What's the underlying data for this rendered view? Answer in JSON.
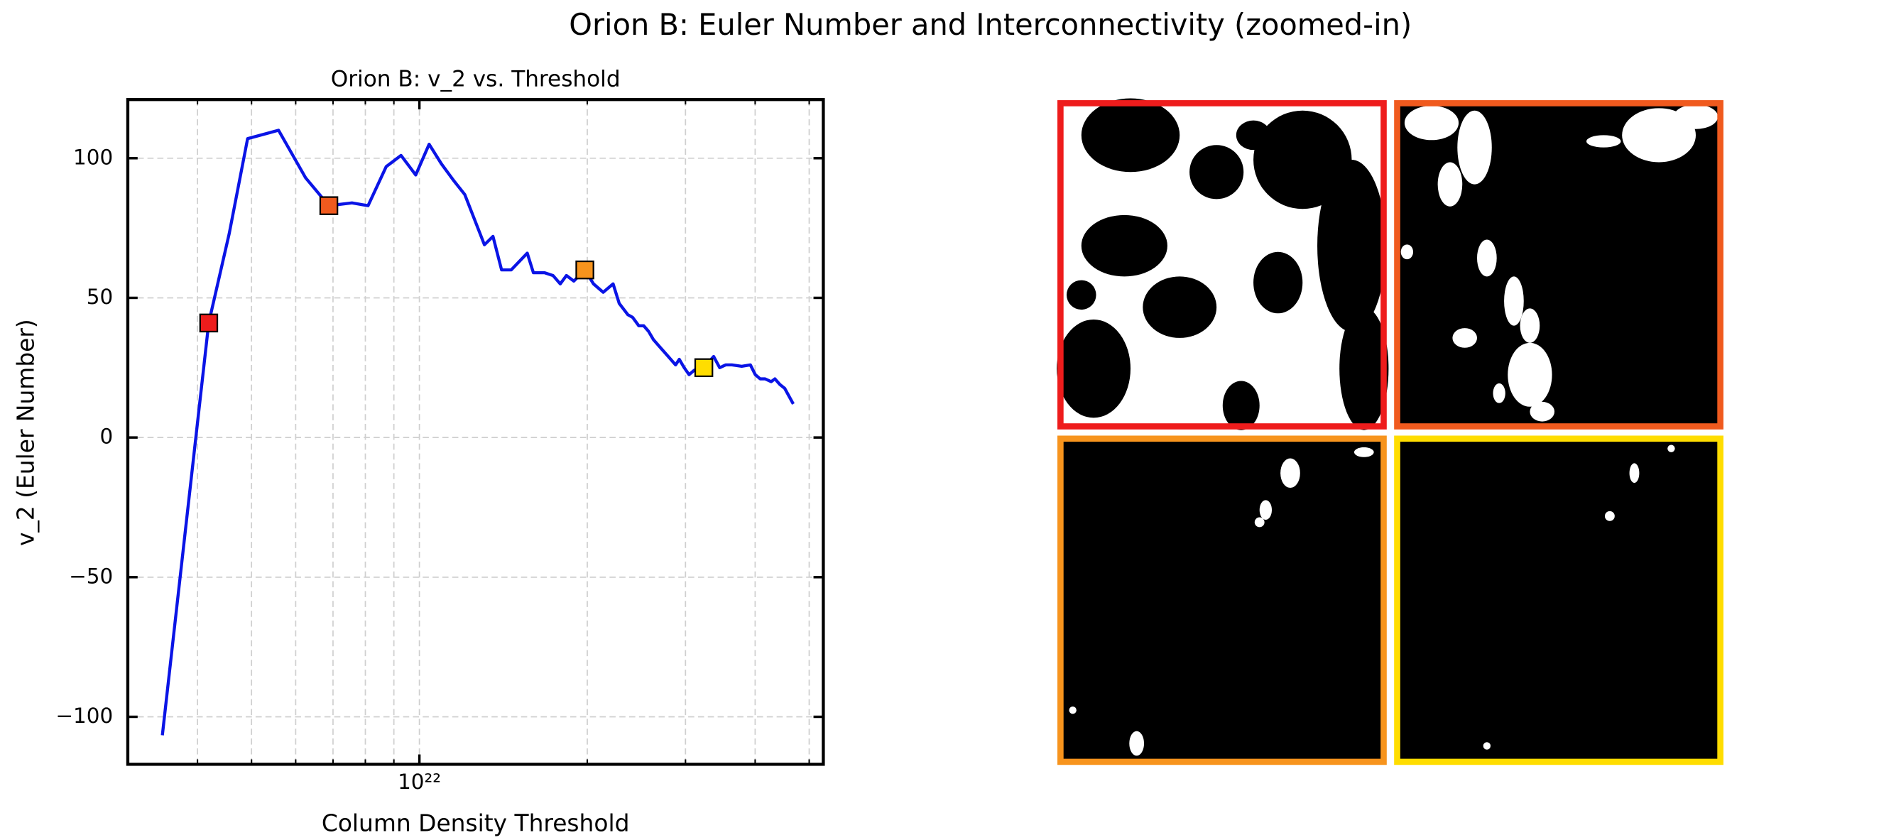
{
  "chart_data": {
    "type": "line",
    "title": "Orion B: Euler Number and Interconnectivity (zoomed-in)",
    "axes_title": "Orion B: v_2 vs. Threshold",
    "x_label": "Column Density Threshold",
    "y_label": "v_2 (Euler Number)",
    "xscale": "log",
    "xlim": [
      3e+21,
      5.3e+22
    ],
    "ylim": [
      -117,
      121
    ],
    "xticks": [
      {
        "value": 1e+22,
        "label": "10²²"
      }
    ],
    "xminor": [
      4e+21,
      5e+21,
      6e+21,
      7e+21,
      8e+21,
      9e+21,
      2e+22,
      3e+22,
      4e+22,
      5e+22
    ],
    "yticks": [
      {
        "value": -100,
        "label": "−100"
      },
      {
        "value": -50,
        "label": "−50"
      },
      0,
      50,
      100
    ],
    "grid": true,
    "x": [
      3.46e+21,
      4.19e+21,
      4.56e+21,
      4.92e+21,
      5.59e+21,
      6.25e+21,
      6.88e+21,
      7.57e+21,
      8.09e+21,
      8.72e+21,
      9.27e+21,
      9.85e+21,
      1.041e+22,
      1.095e+22,
      1.152e+22,
      1.206e+22,
      1.308e+22,
      1.355e+22,
      1.404e+22,
      1.461e+22,
      1.561e+22,
      1.601e+22,
      1.676e+22,
      1.736e+22,
      1.789e+22,
      1.835e+22,
      1.892e+22,
      1.98e+22,
      2.052e+22,
      2.136e+22,
      2.225e+22,
      2.282e+22,
      2.364e+22,
      2.412e+22,
      2.474e+22,
      2.525e+22,
      2.576e+22,
      2.629e+22,
      2.71e+22,
      2.794e+22,
      2.88e+22,
      2.924e+22,
      2.984e+22,
      3.045e+22,
      3.107e+22,
      3.171e+22,
      3.236e+22,
      3.37e+22,
      3.455e+22,
      3.543e+22,
      3.634e+22,
      3.784e+22,
      3.922e+22,
      4.002e+22,
      4.083e+22,
      4.167e+22,
      4.274e+22,
      4.34e+22,
      4.429e+22,
      4.519e+22,
      4.682e+22
    ],
    "series": [
      {
        "color": "#0a14e6",
        "values": [
          -106.6,
          41,
          73,
          107,
          110,
          93,
          83,
          84,
          83,
          97,
          101,
          94,
          105,
          98,
          92,
          87,
          69,
          72,
          60,
          60,
          66,
          59,
          59,
          58,
          55,
          58,
          56,
          60,
          55,
          52,
          55,
          48,
          44,
          43,
          40,
          40,
          38,
          35,
          32,
          29,
          26,
          28,
          25,
          22.5,
          24,
          25,
          25,
          29,
          25,
          26,
          26,
          25.5,
          26,
          22.5,
          21,
          21,
          20,
          21,
          19,
          17.6,
          12
        ]
      }
    ],
    "highlights": {
      "x": [
        4.19e+21,
        6.88e+21,
        1.98e+22,
        3.236e+22
      ],
      "values": [
        41,
        83,
        60,
        25
      ],
      "colors": [
        "#ee1c1c",
        "#f05a1e",
        "#f7941d",
        "#ffdd00"
      ]
    },
    "panel_colors": [
      "#ee1c1c",
      "#f05a1e",
      "#f7941d",
      "#ffdd00"
    ]
  }
}
